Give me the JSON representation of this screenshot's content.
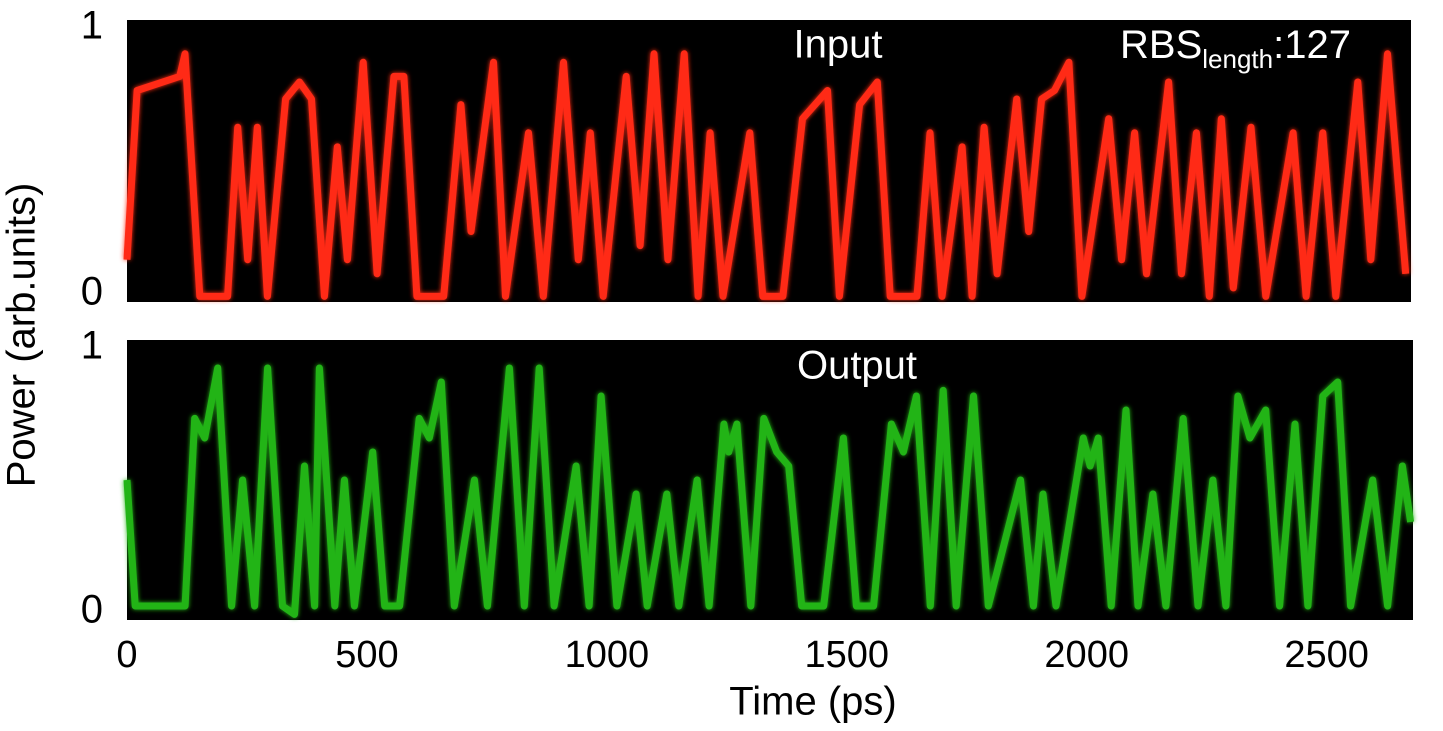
{
  "chart_data": [
    {
      "type": "line",
      "title": "Input",
      "color": "#ff2a12",
      "annotation": {
        "text": "RBS",
        "subscript": "length",
        "suffix": ":127"
      },
      "ylabel": "Power (arb.units)",
      "xlim": [
        0,
        2680
      ],
      "ylim": [
        0,
        1
      ],
      "yticks": [
        0,
        1
      ],
      "x": [
        0,
        21,
        110,
        121,
        152,
        210,
        231,
        252,
        272,
        293,
        331,
        360,
        385,
        412,
        439,
        460,
        493,
        522,
        557,
        578,
        605,
        661,
        697,
        718,
        765,
        790,
        838,
        869,
        911,
        942,
        967,
        994,
        1042,
        1071,
        1100,
        1129,
        1163,
        1192,
        1217,
        1244,
        1300,
        1327,
        1369,
        1410,
        1462,
        1487,
        1529,
        1566,
        1593,
        1649,
        1676,
        1701,
        1743,
        1764,
        1789,
        1816,
        1857,
        1882,
        1909,
        1936,
        1966,
        1993,
        2049,
        2076,
        2103,
        2128,
        2174,
        2201,
        2232,
        2259,
        2284,
        2309,
        2346,
        2377,
        2434,
        2461,
        2496,
        2523,
        2569,
        2596,
        2631,
        2669
      ],
      "values": [
        0.15,
        0.75,
        0.8,
        0.88,
        0.02,
        0.02,
        0.62,
        0.15,
        0.62,
        0.02,
        0.72,
        0.78,
        0.72,
        0.02,
        0.55,
        0.15,
        0.85,
        0.1,
        0.8,
        0.8,
        0.02,
        0.02,
        0.7,
        0.25,
        0.85,
        0.02,
        0.6,
        0.02,
        0.85,
        0.15,
        0.6,
        0.02,
        0.8,
        0.2,
        0.88,
        0.15,
        0.88,
        0.02,
        0.6,
        0.02,
        0.6,
        0.02,
        0.02,
        0.65,
        0.75,
        0.02,
        0.7,
        0.78,
        0.02,
        0.02,
        0.6,
        0.02,
        0.55,
        0.02,
        0.62,
        0.1,
        0.72,
        0.25,
        0.72,
        0.75,
        0.85,
        0.02,
        0.65,
        0.15,
        0.6,
        0.1,
        0.78,
        0.1,
        0.6,
        0.02,
        0.65,
        0.05,
        0.62,
        0.02,
        0.6,
        0.02,
        0.6,
        0.02,
        0.78,
        0.15,
        0.88,
        0.1
      ]
    },
    {
      "type": "line",
      "title": "Output",
      "color": "#22b418",
      "xlabel": "Time (ps)",
      "xlim": [
        0,
        2680
      ],
      "xticks": [
        0,
        500,
        1000,
        1500,
        2000,
        2500
      ],
      "ylim": [
        0,
        1
      ],
      "yticks": [
        0,
        1
      ],
      "x": [
        0,
        17,
        121,
        141,
        162,
        189,
        218,
        241,
        266,
        293,
        324,
        349,
        370,
        391,
        401,
        433,
        453,
        474,
        512,
        537,
        568,
        609,
        630,
        655,
        682,
        724,
        751,
        797,
        828,
        859,
        890,
        936,
        963,
        988,
        1021,
        1061,
        1084,
        1125,
        1150,
        1188,
        1213,
        1244,
        1254,
        1271,
        1300,
        1327,
        1354,
        1379,
        1406,
        1452,
        1493,
        1520,
        1556,
        1593,
        1618,
        1645,
        1674,
        1701,
        1728,
        1764,
        1795,
        1862,
        1889,
        1909,
        1936,
        1993,
        2007,
        2024,
        2051,
        2082,
        2107,
        2138,
        2165,
        2201,
        2232,
        2263,
        2290,
        2315,
        2340,
        2373,
        2402,
        2434,
        2461,
        2492,
        2523,
        2550,
        2596,
        2627,
        2658,
        2675
      ],
      "values": [
        0.5,
        0.05,
        0.05,
        0.72,
        0.65,
        0.9,
        0.05,
        0.5,
        0.05,
        0.9,
        0.05,
        0.02,
        0.55,
        0.05,
        0.9,
        0.05,
        0.5,
        0.05,
        0.6,
        0.05,
        0.05,
        0.72,
        0.65,
        0.85,
        0.05,
        0.5,
        0.05,
        0.9,
        0.05,
        0.9,
        0.05,
        0.55,
        0.05,
        0.8,
        0.05,
        0.45,
        0.05,
        0.45,
        0.05,
        0.5,
        0.05,
        0.7,
        0.6,
        0.7,
        0.05,
        0.72,
        0.6,
        0.55,
        0.05,
        0.05,
        0.65,
        0.05,
        0.05,
        0.7,
        0.6,
        0.8,
        0.05,
        0.82,
        0.05,
        0.8,
        0.05,
        0.5,
        0.05,
        0.45,
        0.05,
        0.65,
        0.55,
        0.65,
        0.05,
        0.75,
        0.05,
        0.45,
        0.05,
        0.72,
        0.05,
        0.5,
        0.05,
        0.8,
        0.65,
        0.75,
        0.05,
        0.7,
        0.05,
        0.8,
        0.85,
        0.05,
        0.5,
        0.05,
        0.55,
        0.35
      ]
    }
  ]
}
